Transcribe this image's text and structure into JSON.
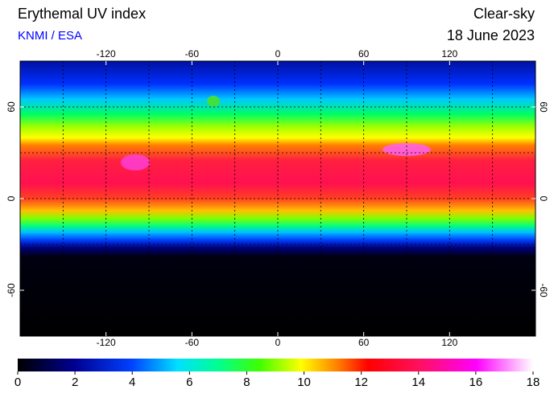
{
  "chart_data": {
    "type": "map",
    "title": "Erythemal UV index",
    "subtitle": "KNMI / ESA",
    "condition": "Clear-sky",
    "date": "18 June 2023",
    "xlim": [
      -180,
      180
    ],
    "ylim": [
      -90,
      90
    ],
    "xticks": [
      -120,
      -60,
      0,
      60,
      120
    ],
    "yticks": [
      -60,
      0,
      60
    ],
    "xgrid": [
      -150,
      -120,
      -90,
      -60,
      -30,
      0,
      30,
      60,
      90,
      120,
      150
    ],
    "ygrid": [
      -60,
      -30,
      0,
      30,
      60
    ],
    "colorbar": {
      "lim": [
        0,
        18
      ],
      "ticks": [
        0,
        2,
        4,
        6,
        8,
        10,
        12,
        14,
        16,
        18
      ]
    }
  }
}
